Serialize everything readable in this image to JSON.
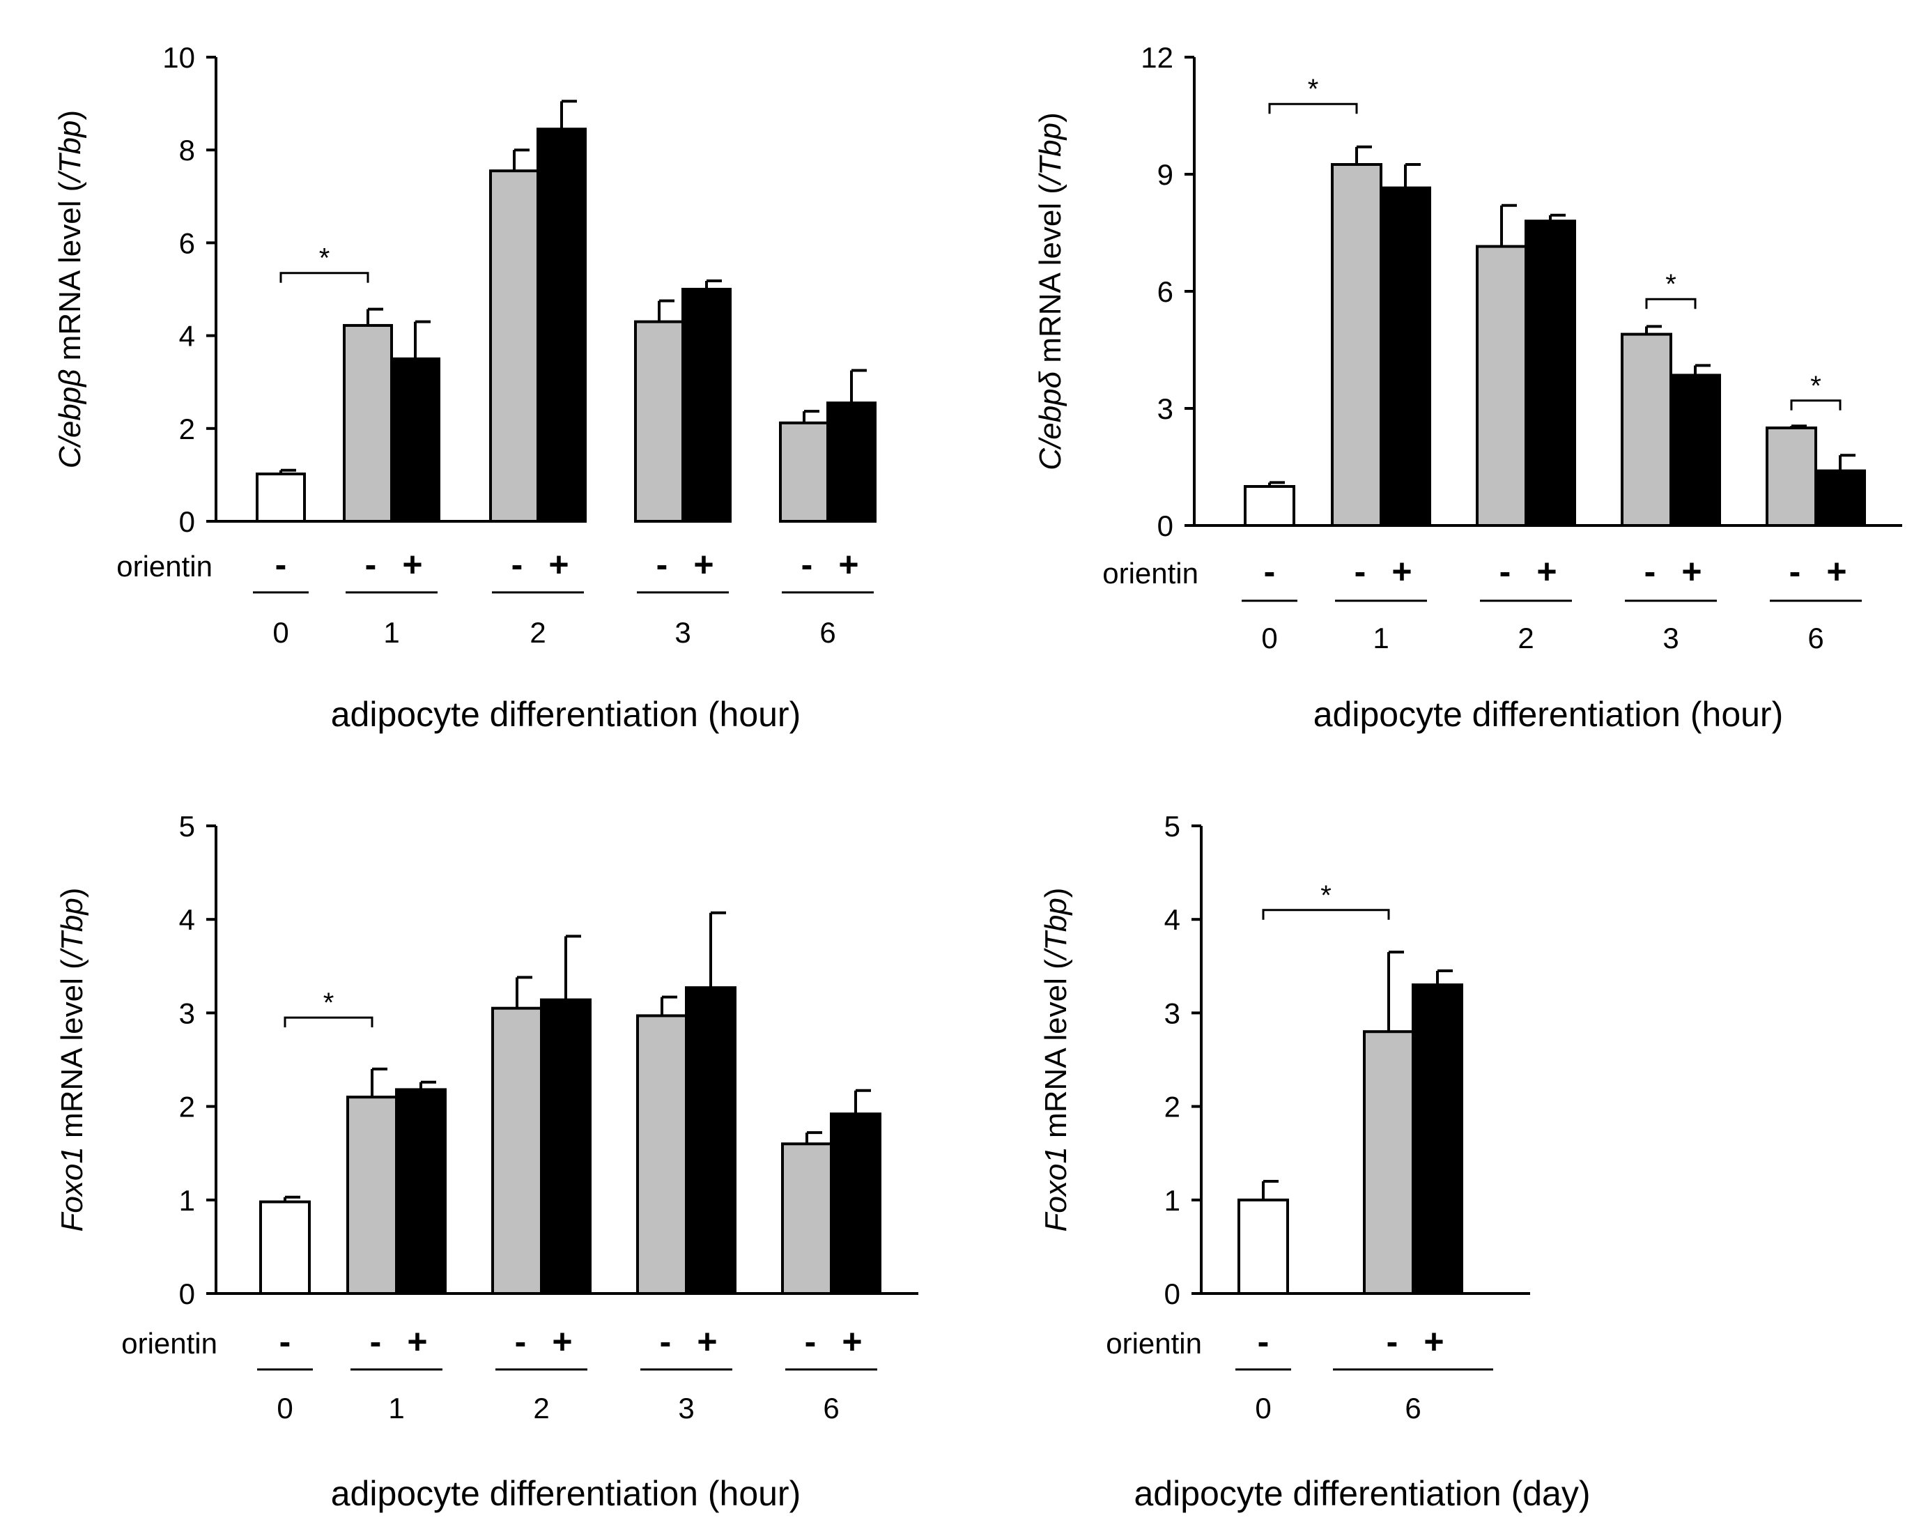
{
  "chart_data": [
    {
      "id": "cebpb",
      "type": "bar",
      "ylabel_italic": "C/ebpβ",
      "ylabel_rest": " mRNA level (",
      "ylabel_ital2": "/Tbp",
      "ylabel_end": ")",
      "ylim": [
        0,
        10
      ],
      "yticks": [
        "0",
        "2",
        "4",
        "6",
        "8",
        "10"
      ],
      "treatment_label": "orientin",
      "xlabel": "adipocyte differentiation (hour)",
      "groups": [
        {
          "time": "0",
          "bars": [
            {
              "sign": "-",
              "fill": "white",
              "value": 1.02,
              "error": 0.08
            }
          ]
        },
        {
          "time": "1",
          "bars": [
            {
              "sign": "-",
              "fill": "gray",
              "value": 4.22,
              "error": 0.35
            },
            {
              "sign": "+",
              "fill": "black",
              "value": 3.5,
              "error": 0.8
            }
          ]
        },
        {
          "time": "2",
          "bars": [
            {
              "sign": "-",
              "fill": "gray",
              "value": 7.55,
              "error": 0.45
            },
            {
              "sign": "+",
              "fill": "black",
              "value": 8.45,
              "error": 0.6
            }
          ]
        },
        {
          "time": "3",
          "bars": [
            {
              "sign": "-",
              "fill": "gray",
              "value": 4.3,
              "error": 0.45
            },
            {
              "sign": "+",
              "fill": "black",
              "value": 5.0,
              "error": 0.18
            }
          ]
        },
        {
          "time": "6",
          "bars": [
            {
              "sign": "-",
              "fill": "gray",
              "value": 2.12,
              "error": 0.25
            },
            {
              "sign": "+",
              "fill": "black",
              "value": 2.55,
              "error": 0.7
            }
          ]
        }
      ],
      "significance": [
        {
          "from": [
            0,
            0
          ],
          "to": [
            1,
            0
          ],
          "y": 5.35,
          "label": "*"
        }
      ]
    },
    {
      "id": "cebpd",
      "type": "bar",
      "ylabel_italic": "C/ebpδ",
      "ylabel_rest": " mRNA level (",
      "ylabel_ital2": "/Tbp",
      "ylabel_end": ")",
      "ylim": [
        0,
        12
      ],
      "yticks": [
        "0",
        "3",
        "6",
        "9",
        "12"
      ],
      "treatment_label": "orientin",
      "xlabel": "adipocyte differentiation (hour)",
      "groups": [
        {
          "time": "0",
          "bars": [
            {
              "sign": "-",
              "fill": "white",
              "value": 1.0,
              "error": 0.1
            }
          ]
        },
        {
          "time": "1",
          "bars": [
            {
              "sign": "-",
              "fill": "gray",
              "value": 9.25,
              "error": 0.45
            },
            {
              "sign": "+",
              "fill": "black",
              "value": 8.65,
              "error": 0.6
            }
          ]
        },
        {
          "time": "2",
          "bars": [
            {
              "sign": "-",
              "fill": "gray",
              "value": 7.15,
              "error": 1.05
            },
            {
              "sign": "+",
              "fill": "black",
              "value": 7.8,
              "error": 0.15
            }
          ]
        },
        {
          "time": "3",
          "bars": [
            {
              "sign": "-",
              "fill": "gray",
              "value": 4.9,
              "error": 0.2
            },
            {
              "sign": "+",
              "fill": "black",
              "value": 3.85,
              "error": 0.25
            }
          ]
        },
        {
          "time": "6",
          "bars": [
            {
              "sign": "-",
              "fill": "gray",
              "value": 2.5,
              "error": 0.05
            },
            {
              "sign": "+",
              "fill": "black",
              "value": 1.4,
              "error": 0.4
            }
          ]
        }
      ],
      "significance": [
        {
          "from": [
            0,
            0
          ],
          "to": [
            1,
            0
          ],
          "y": 10.8,
          "label": "*"
        },
        {
          "from": [
            3,
            0
          ],
          "to": [
            3,
            1
          ],
          "y": 5.8,
          "label": "*"
        },
        {
          "from": [
            4,
            0
          ],
          "to": [
            4,
            1
          ],
          "y": 3.2,
          "label": "*"
        }
      ]
    },
    {
      "id": "foxo1_hour",
      "type": "bar",
      "ylabel_italic": "Foxo1",
      "ylabel_rest": " mRNA level (",
      "ylabel_ital2": "/Tbp",
      "ylabel_end": ")",
      "ylim": [
        0,
        5
      ],
      "yticks": [
        "0",
        "1",
        "2",
        "3",
        "4",
        "5"
      ],
      "treatment_label": "orientin",
      "xlabel": "adipocyte differentiation (hour)",
      "groups": [
        {
          "time": "0",
          "bars": [
            {
              "sign": "-",
              "fill": "white",
              "value": 0.98,
              "error": 0.05
            }
          ]
        },
        {
          "time": "1",
          "bars": [
            {
              "sign": "-",
              "fill": "gray",
              "value": 2.1,
              "error": 0.3
            },
            {
              "sign": "+",
              "fill": "black",
              "value": 2.18,
              "error": 0.08
            }
          ]
        },
        {
          "time": "2",
          "bars": [
            {
              "sign": "-",
              "fill": "gray",
              "value": 3.05,
              "error": 0.33
            },
            {
              "sign": "+",
              "fill": "black",
              "value": 3.14,
              "error": 0.68
            }
          ]
        },
        {
          "time": "3",
          "bars": [
            {
              "sign": "-",
              "fill": "gray",
              "value": 2.97,
              "error": 0.2
            },
            {
              "sign": "+",
              "fill": "black",
              "value": 3.27,
              "error": 0.8
            }
          ]
        },
        {
          "time": "6",
          "bars": [
            {
              "sign": "-",
              "fill": "gray",
              "value": 1.6,
              "error": 0.12
            },
            {
              "sign": "+",
              "fill": "black",
              "value": 1.92,
              "error": 0.25
            }
          ]
        }
      ],
      "significance": [
        {
          "from": [
            0,
            0
          ],
          "to": [
            1,
            0
          ],
          "y": 2.95,
          "label": "*"
        }
      ]
    },
    {
      "id": "foxo1_day",
      "type": "bar",
      "ylabel_italic": "Foxo1",
      "ylabel_rest": " mRNA level (",
      "ylabel_ital2": "/Tbp",
      "ylabel_end": ")",
      "ylim": [
        0,
        5
      ],
      "yticks": [
        "0",
        "1",
        "2",
        "3",
        "4",
        "5"
      ],
      "treatment_label": "orientin",
      "xlabel": "adipocyte differentiation (day)",
      "groups": [
        {
          "time": "0",
          "bars": [
            {
              "sign": "-",
              "fill": "white",
              "value": 1.0,
              "error": 0.2
            }
          ]
        },
        {
          "time": "6",
          "bars": [
            {
              "sign": "-",
              "fill": "gray",
              "value": 2.8,
              "error": 0.85
            },
            {
              "sign": "+",
              "fill": "black",
              "value": 3.3,
              "error": 0.15
            }
          ]
        }
      ],
      "significance": [
        {
          "from": [
            0,
            0
          ],
          "to": [
            1,
            0
          ],
          "y": 4.1,
          "label": "*"
        }
      ]
    }
  ],
  "colors": {
    "white": "#ffffff",
    "gray": "#c0c0c0",
    "black": "#000000"
  }
}
